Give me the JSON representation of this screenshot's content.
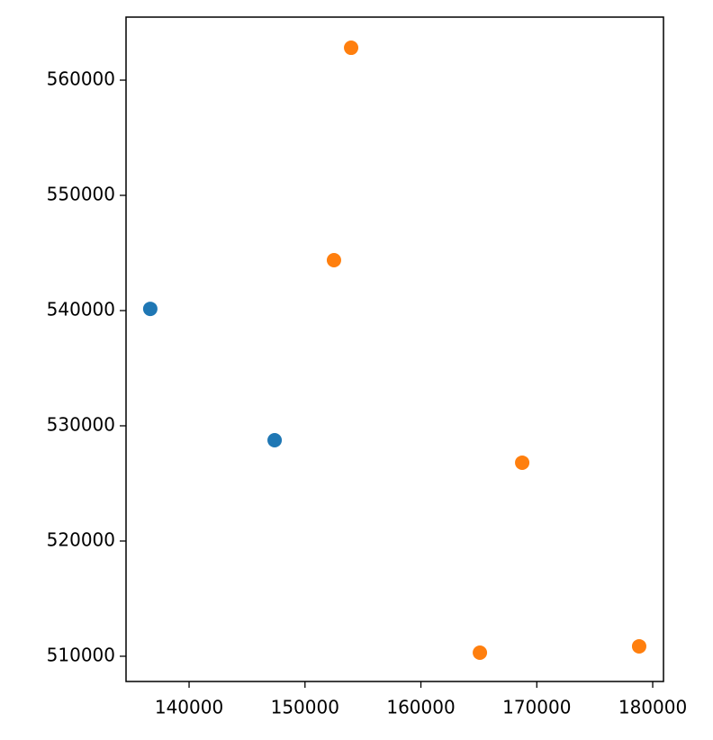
{
  "chart_data": {
    "type": "scatter",
    "series": [
      {
        "color": "#1f77b4",
        "x": [
          136650,
          147380
        ],
        "values": [
          540150,
          528750
        ]
      },
      {
        "color": "#ff7f0e",
        "x": [
          153980,
          152500,
          168740,
          165090,
          178830
        ],
        "values": [
          562810,
          544375,
          526800,
          510310,
          510860
        ]
      }
    ],
    "xlim": [
      134560,
      180930
    ],
    "ylim": [
      507810,
      565470
    ],
    "xticks": [
      140000,
      150000,
      160000,
      170000,
      180000
    ],
    "yticks": [
      510000,
      520000,
      530000,
      540000,
      550000,
      560000
    ]
  }
}
